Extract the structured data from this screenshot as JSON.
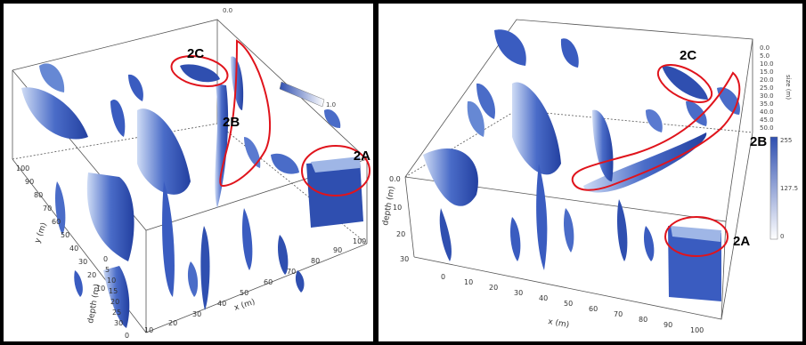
{
  "colors": {
    "blob": "#2f4fb0",
    "blob_light": "#9fb6e6",
    "outline": "#e0141c",
    "frame": "#000000"
  },
  "left_panel": {
    "labels": {
      "a": "2A",
      "b": "2B",
      "c": "2C"
    },
    "x_axis_label": "x (m)",
    "y_axis_label": "y (m)",
    "z_axis_label": "depth (m)",
    "x_ticks": [
      "0",
      "10",
      "20",
      "30",
      "40",
      "50",
      "60",
      "70",
      "80",
      "90",
      "100"
    ],
    "y_ticks": [
      "100",
      "90",
      "80",
      "70",
      "60",
      "50",
      "40",
      "30",
      "20",
      "10"
    ],
    "z_ticks": [
      "0",
      "5",
      "10",
      "15",
      "20",
      "25",
      "30"
    ],
    "colorbar_ticks": [
      "0.0",
      "1.0"
    ]
  },
  "right_panel": {
    "labels": {
      "a": "2A",
      "b": "2B",
      "c": "2C"
    },
    "x_axis_label": "x (m)",
    "z_axis_label": "depth (m)",
    "right_axis_label": "size (m)",
    "x_ticks": [
      "0",
      "10",
      "20",
      "30",
      "40",
      "50",
      "60",
      "70",
      "80",
      "90",
      "100"
    ],
    "z_ticks": [
      "0.0",
      "10",
      "20",
      "30"
    ],
    "right_ticks": [
      "0.0",
      "5.0",
      "10.0",
      "15.0",
      "20.0",
      "25.0",
      "30.0",
      "35.0",
      "40.0",
      "45.0",
      "50.0"
    ],
    "colorbar_ticks": [
      "255",
      "127.5",
      "0"
    ]
  }
}
